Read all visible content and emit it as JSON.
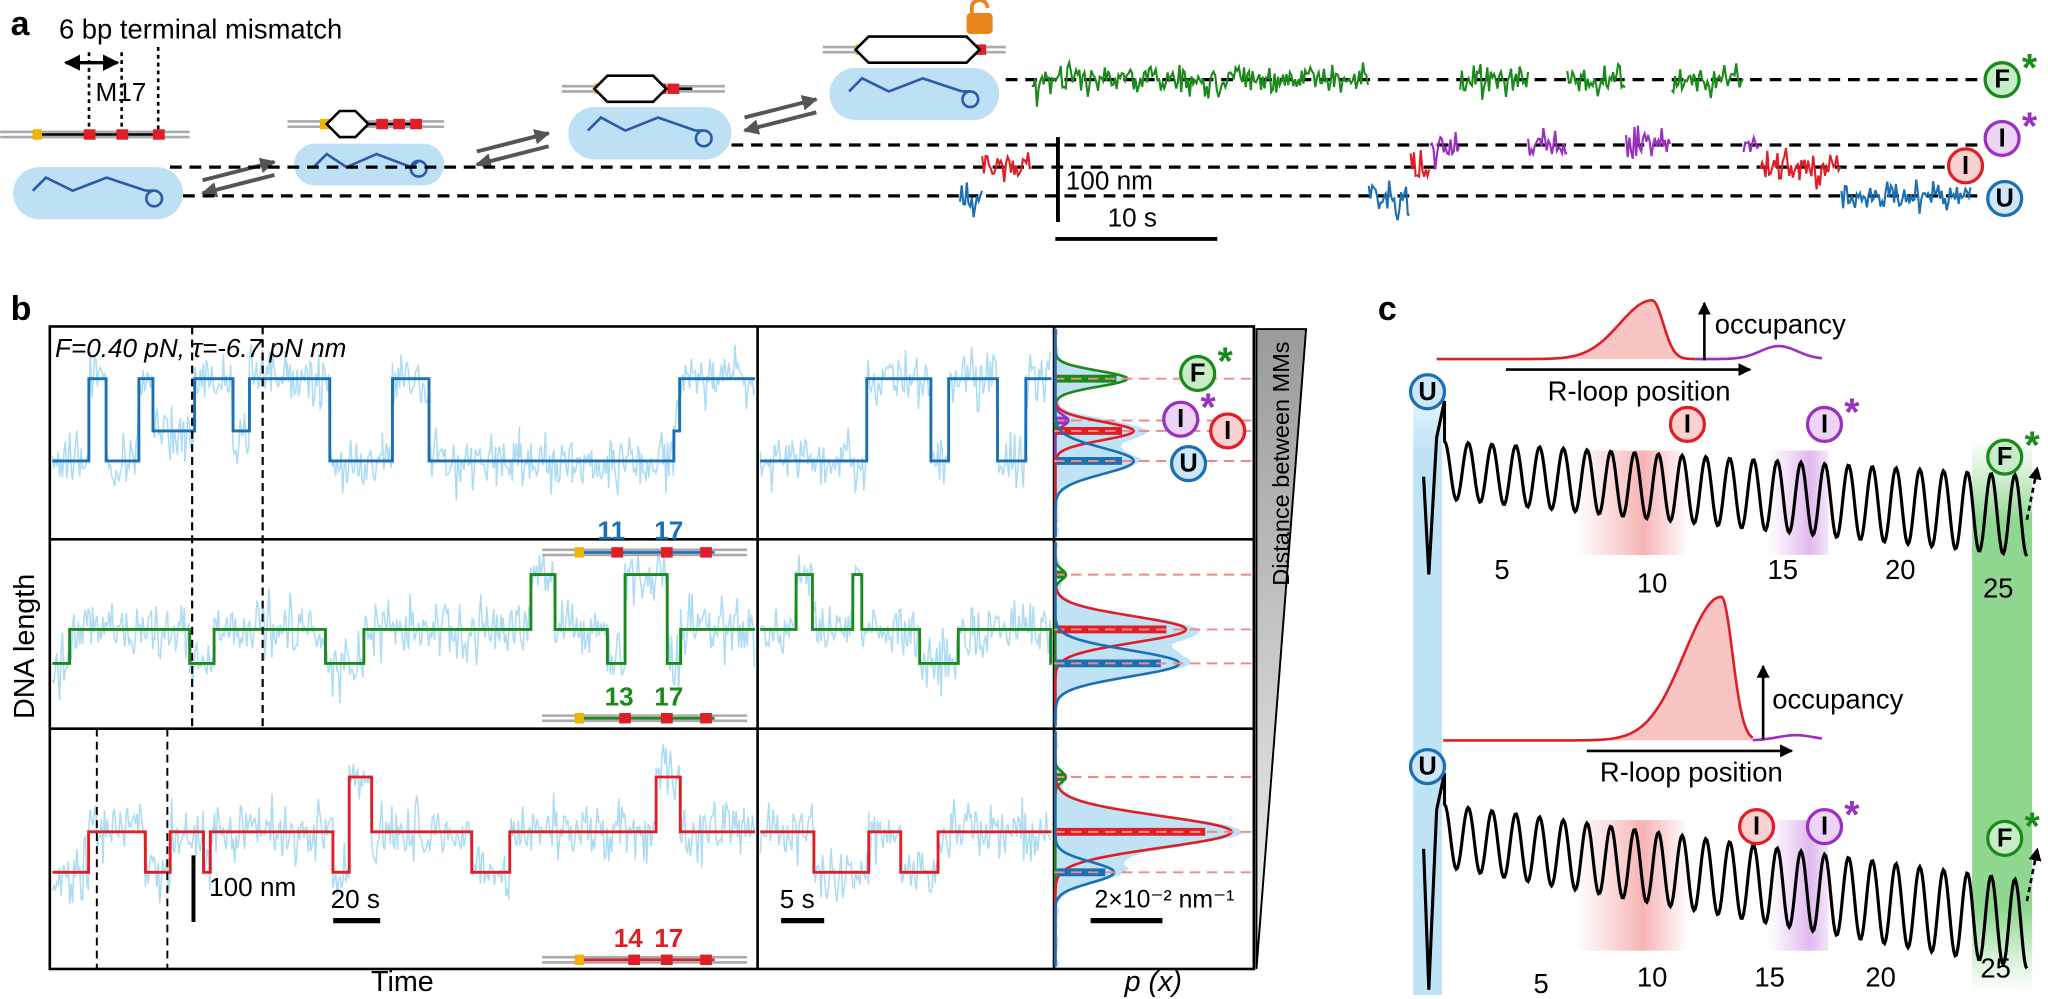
{
  "panel_a": {
    "label": "a",
    "mismatch_title": "6 bp terminal mismatch",
    "mismatch_name": "M17",
    "scale_length": "100 nm",
    "scale_time": "10 s"
  },
  "panel_b": {
    "label": "b",
    "conditions": "F=0.40 pN, τ=-6.7 pN nm",
    "y_axis_title": "DNA length",
    "x_axis_title": "Time",
    "density_axis_title": "p (x)",
    "gradient_label": "Distance between MMs",
    "rows": [
      {
        "mismatch_positions": [
          "11",
          "17"
        ]
      },
      {
        "mismatch_positions": [
          "13",
          "17"
        ]
      },
      {
        "mismatch_positions": [
          "14",
          "17"
        ]
      }
    ],
    "scale_length": "100 nm",
    "scale_time_long": "20 s",
    "scale_time_short": "5 s",
    "scale_density": "2×10⁻² nm⁻¹"
  },
  "panel_c": {
    "label": "c",
    "occupancy_label": "occupancy",
    "position_label": "R-loop position",
    "position_ticks": [
      "5",
      "10",
      "15",
      "20",
      "25"
    ]
  },
  "states": {
    "full": {
      "letter": "F",
      "star": "*"
    },
    "intermediate_star": {
      "letter": "I",
      "star": "*"
    },
    "intermediate": {
      "letter": "I"
    },
    "unwound": {
      "letter": "U"
    }
  }
}
